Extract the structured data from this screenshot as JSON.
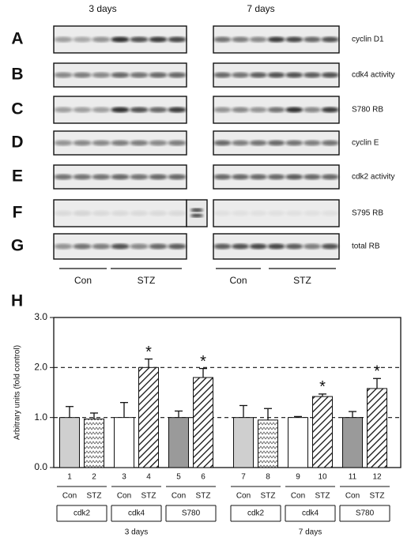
{
  "blots": {
    "time_labels": [
      "3 days",
      "7 days"
    ],
    "rows": [
      {
        "panel": "A",
        "label": "cyclin D1"
      },
      {
        "panel": "B",
        "label": "cdk4 activity"
      },
      {
        "panel": "C",
        "label": "S780 RB"
      },
      {
        "panel": "D",
        "label": "cyclin E"
      },
      {
        "panel": "E",
        "label": "cdk2 activity"
      },
      {
        "panel": "F",
        "label": "S795 RB"
      },
      {
        "panel": "G",
        "label": "total RB"
      }
    ],
    "group_labels": [
      "Con",
      "STZ",
      "Con",
      "STZ"
    ]
  },
  "chart_data": {
    "type": "bar",
    "panel": "H",
    "y_label": "Arbitrary units (fold control)",
    "categories": [
      "1",
      "2",
      "3",
      "4",
      "5",
      "6",
      "7",
      "8",
      "9",
      "10",
      "11",
      "12"
    ],
    "values": [
      1.0,
      0.97,
      1.0,
      2.0,
      1.0,
      1.8,
      1.0,
      0.95,
      1.0,
      1.42,
      1.0,
      1.58
    ],
    "errors": [
      0.22,
      0.12,
      0.3,
      0.17,
      0.13,
      0.18,
      0.24,
      0.23,
      0.02,
      0.05,
      0.12,
      0.2
    ],
    "colors": [
      "#cfcfcf",
      "#ffffff",
      "#ffffff",
      "#ffffff",
      "#9a9a9a",
      "#ffffff",
      "#cfcfcf",
      "#ffffff",
      "#ffffff",
      "#ffffff",
      "#9a9a9a",
      "#ffffff"
    ],
    "patterns": [
      null,
      "zigzag",
      null,
      "hatch",
      null,
      "hatch",
      null,
      "zigzag",
      null,
      "hatch",
      null,
      "hatch"
    ],
    "markers": [
      null,
      null,
      null,
      "*",
      null,
      "*",
      null,
      null,
      null,
      "*",
      null,
      "*"
    ],
    "treatments": [
      "Con",
      "STZ",
      "Con",
      "STZ",
      "Con",
      "STZ",
      "Con",
      "STZ",
      "Con",
      "STZ",
      "Con",
      "STZ"
    ],
    "groups": [
      "cdk2",
      "cdk4",
      "S780",
      "cdk2",
      "cdk4",
      "S780"
    ],
    "periods": [
      "3 days",
      "7 days"
    ],
    "ylim": [
      0,
      3
    ],
    "yticks": [
      {
        "value": 0,
        "label": "0.0"
      },
      {
        "value": 1,
        "label": "1.0"
      },
      {
        "value": 2,
        "label": "2.0"
      },
      {
        "value": 3,
        "label": "3.0"
      }
    ],
    "reference_lines": [
      1,
      2
    ]
  }
}
